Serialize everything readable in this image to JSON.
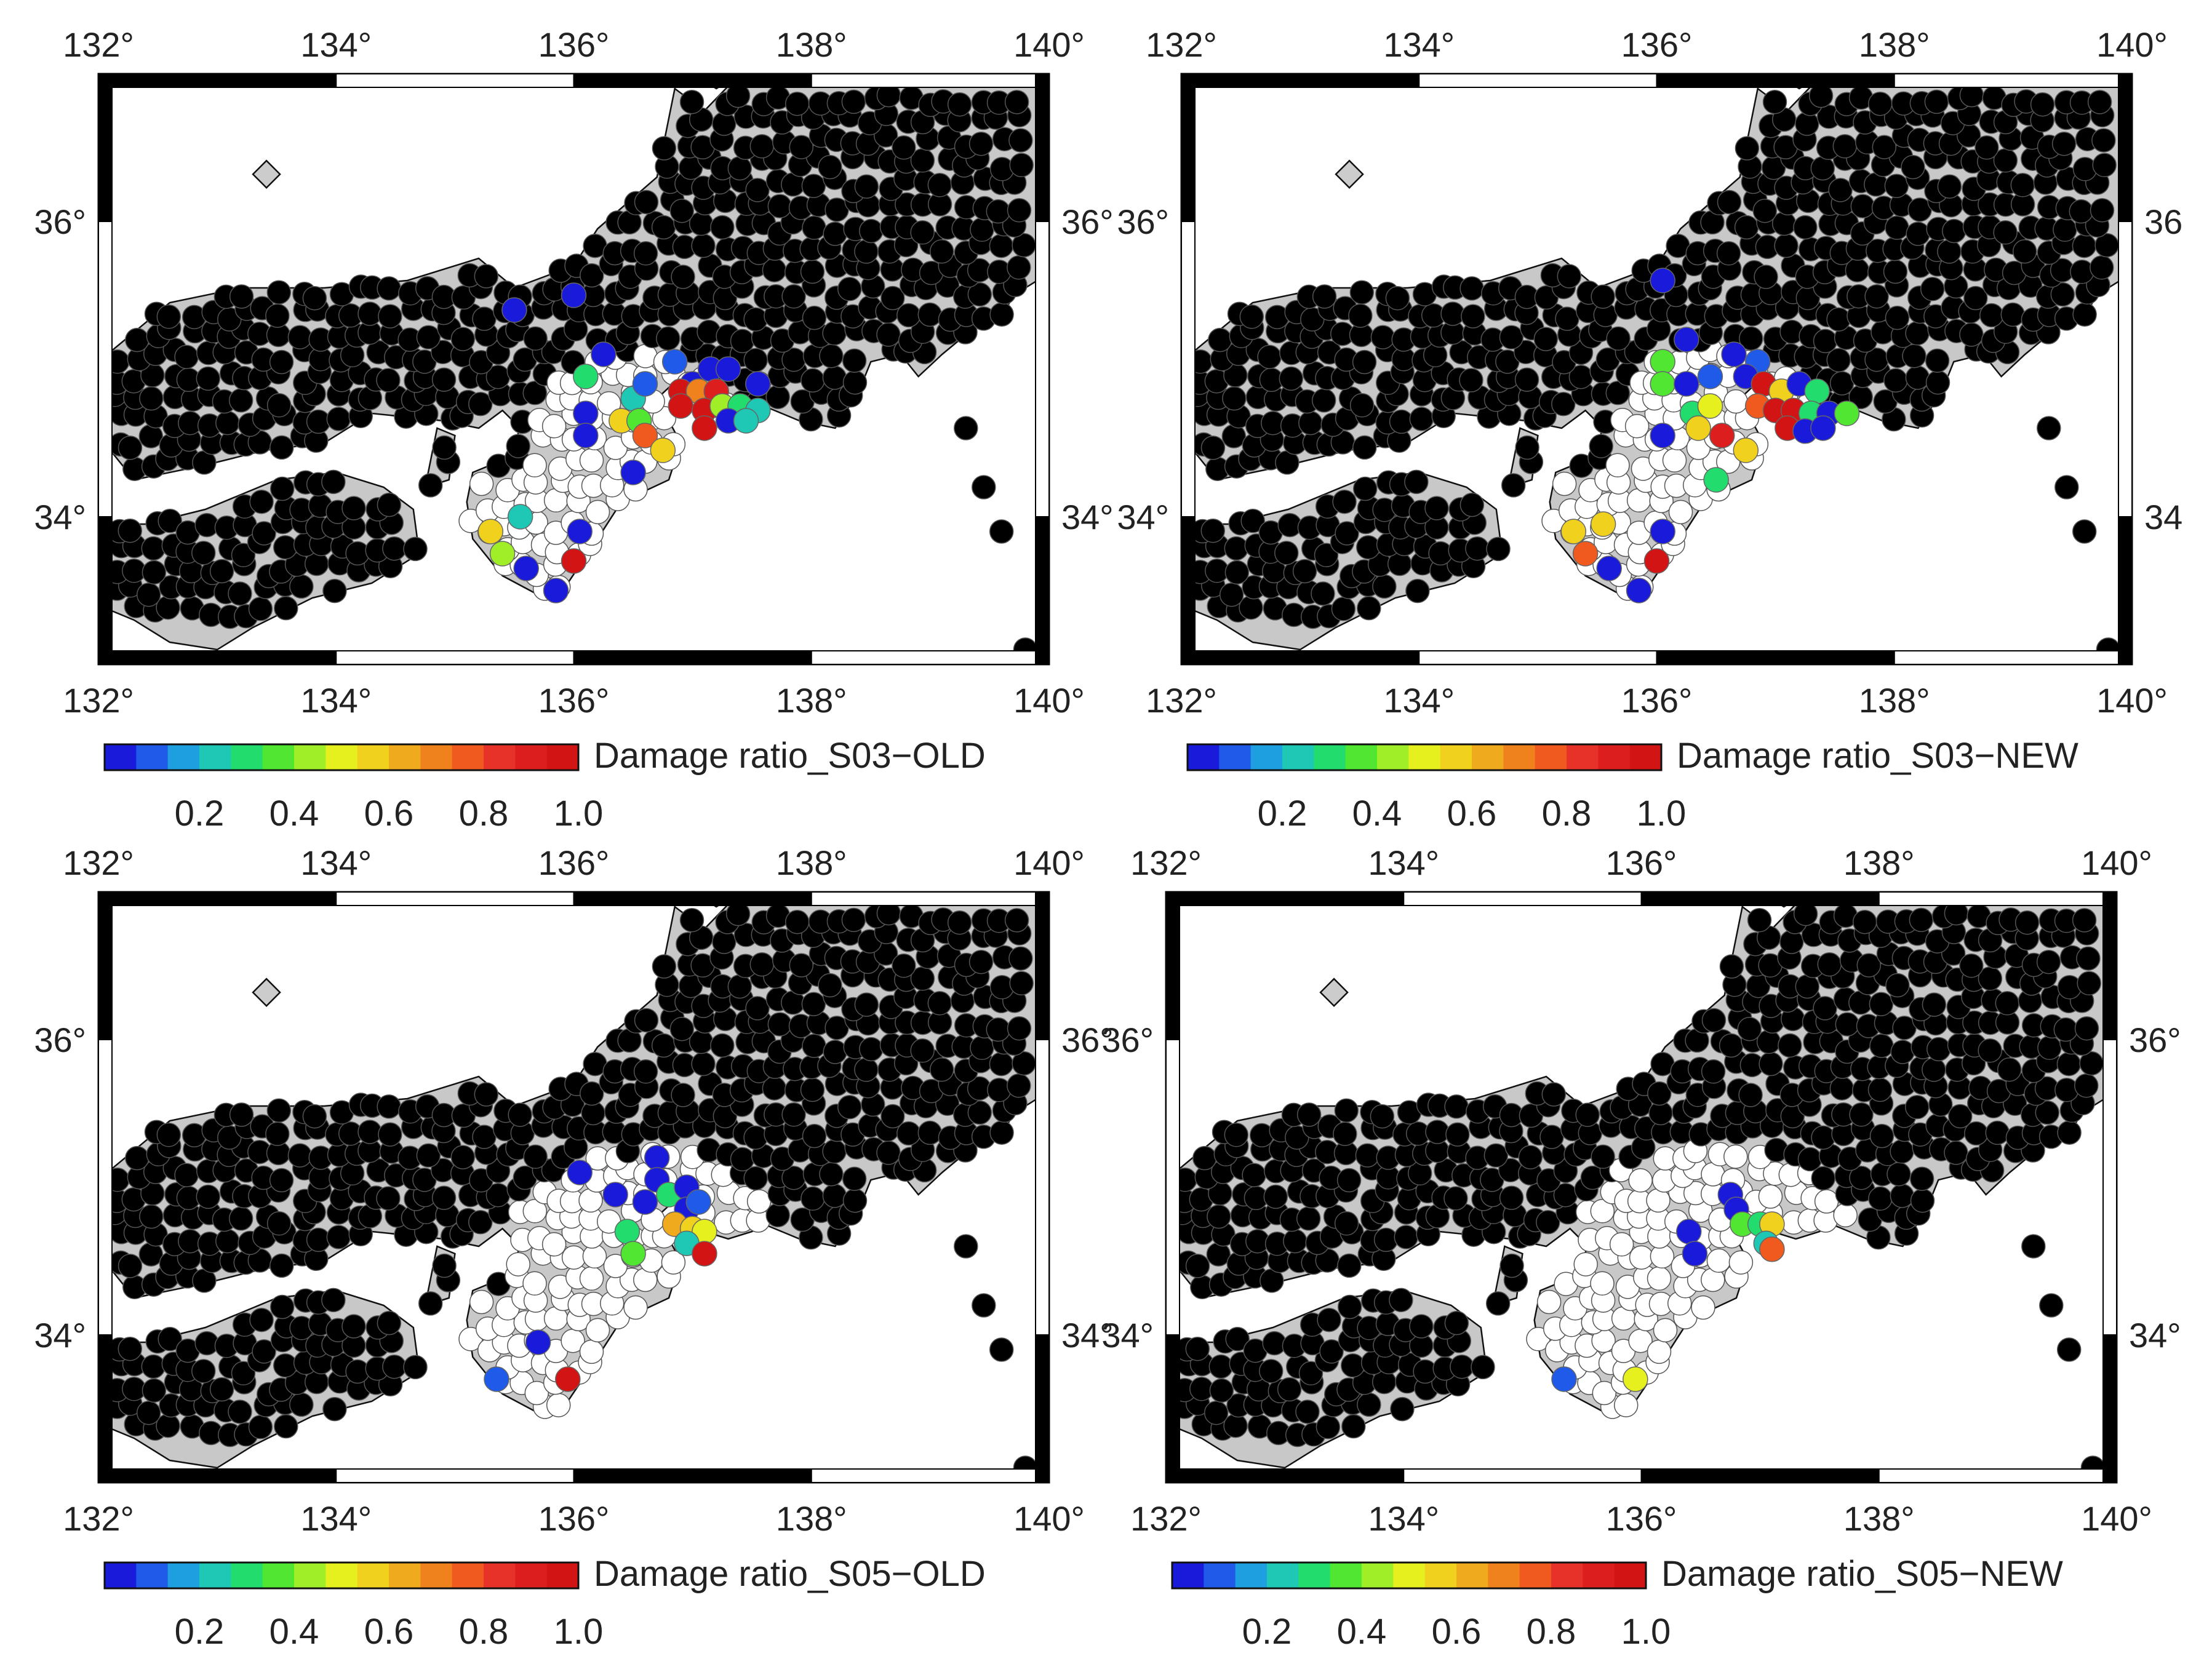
{
  "map": {
    "lon_range": [
      132,
      140
    ],
    "lat_range": [
      33,
      37
    ],
    "lon_ticks": [
      "132°",
      "134°",
      "136°",
      "138°",
      "140°"
    ],
    "lat_ticks": [
      "34°",
      "36°"
    ],
    "lat_ticks_right_alt": [
      "34",
      "36"
    ],
    "land_color": "#c8c8c8",
    "sea_color": "#ffffff",
    "dot_color_unaffected": "#000000",
    "dot_color_zero_damage": "#ffffff"
  },
  "colorbar": {
    "ticks": [
      "0.2",
      "0.4",
      "0.6",
      "0.8",
      "1.0"
    ],
    "colors": [
      "#1a1adb",
      "#1f5ae8",
      "#1ea0e0",
      "#1fc8b4",
      "#22dc6e",
      "#50e632",
      "#a0ee28",
      "#e6f01e",
      "#f0d21e",
      "#f0aa1e",
      "#f0821e",
      "#f05a1e",
      "#e63228",
      "#dc1e1e",
      "#d21414"
    ]
  },
  "panels": [
    {
      "title": "Damage ratio_S03−OLD",
      "right_lat_labels_plain": false,
      "colored_stations": [
        {
          "lon": 135.5,
          "lat": 35.4,
          "ratio": 0.05
        },
        {
          "lon": 136.0,
          "lat": 35.5,
          "ratio": 0.05
        },
        {
          "lon": 136.25,
          "lat": 35.1,
          "ratio": 0.05
        },
        {
          "lon": 136.1,
          "lat": 34.95,
          "ratio": 0.3
        },
        {
          "lon": 136.5,
          "lat": 34.8,
          "ratio": 0.2
        },
        {
          "lon": 136.6,
          "lat": 34.9,
          "ratio": 0.1
        },
        {
          "lon": 136.1,
          "lat": 34.7,
          "ratio": 0.05
        },
        {
          "lon": 136.4,
          "lat": 34.65,
          "ratio": 0.55
        },
        {
          "lon": 136.55,
          "lat": 34.65,
          "ratio": 0.35
        },
        {
          "lon": 136.6,
          "lat": 34.55,
          "ratio": 0.75
        },
        {
          "lon": 136.75,
          "lat": 34.45,
          "ratio": 0.55
        },
        {
          "lon": 136.1,
          "lat": 34.55,
          "ratio": 0.05
        },
        {
          "lon": 136.5,
          "lat": 34.3,
          "ratio": 0.05
        },
        {
          "lon": 136.85,
          "lat": 35.05,
          "ratio": 0.1
        },
        {
          "lon": 137.0,
          "lat": 34.9,
          "ratio": 0.05
        },
        {
          "lon": 137.15,
          "lat": 35.0,
          "ratio": 0.05
        },
        {
          "lon": 137.3,
          "lat": 35.0,
          "ratio": 0.05
        },
        {
          "lon": 136.9,
          "lat": 34.85,
          "ratio": 0.95
        },
        {
          "lon": 137.05,
          "lat": 34.85,
          "ratio": 0.7
        },
        {
          "lon": 137.2,
          "lat": 34.85,
          "ratio": 0.9
        },
        {
          "lon": 136.9,
          "lat": 34.75,
          "ratio": 0.95
        },
        {
          "lon": 137.1,
          "lat": 34.72,
          "ratio": 0.95
        },
        {
          "lon": 137.25,
          "lat": 34.75,
          "ratio": 0.4
        },
        {
          "lon": 137.4,
          "lat": 34.75,
          "ratio": 0.3
        },
        {
          "lon": 137.55,
          "lat": 34.72,
          "ratio": 0.25
        },
        {
          "lon": 137.1,
          "lat": 34.6,
          "ratio": 0.95
        },
        {
          "lon": 137.3,
          "lat": 34.65,
          "ratio": 0.05
        },
        {
          "lon": 137.45,
          "lat": 34.65,
          "ratio": 0.25
        },
        {
          "lon": 137.55,
          "lat": 34.9,
          "ratio": 0.05
        },
        {
          "lon": 135.3,
          "lat": 33.9,
          "ratio": 0.55
        },
        {
          "lon": 135.55,
          "lat": 34.0,
          "ratio": 0.25
        },
        {
          "lon": 135.4,
          "lat": 33.75,
          "ratio": 0.45
        },
        {
          "lon": 135.6,
          "lat": 33.65,
          "ratio": 0.05
        },
        {
          "lon": 135.85,
          "lat": 33.5,
          "ratio": 0.05
        },
        {
          "lon": 136.0,
          "lat": 33.7,
          "ratio": 0.95
        },
        {
          "lon": 136.05,
          "lat": 33.9,
          "ratio": 0.05
        }
      ]
    },
    {
      "title": "Damage ratio_S03−NEW",
      "right_lat_labels_plain": true,
      "colored_stations": [
        {
          "lon": 136.05,
          "lat": 35.6,
          "ratio": 0.05
        },
        {
          "lon": 136.25,
          "lat": 35.2,
          "ratio": 0.05
        },
        {
          "lon": 136.05,
          "lat": 35.05,
          "ratio": 0.35
        },
        {
          "lon": 136.05,
          "lat": 34.9,
          "ratio": 0.35
        },
        {
          "lon": 136.25,
          "lat": 34.9,
          "ratio": 0.05
        },
        {
          "lon": 136.45,
          "lat": 34.95,
          "ratio": 0.1
        },
        {
          "lon": 136.65,
          "lat": 35.1,
          "ratio": 0.05
        },
        {
          "lon": 136.85,
          "lat": 35.05,
          "ratio": 0.1
        },
        {
          "lon": 136.75,
          "lat": 34.95,
          "ratio": 0.05
        },
        {
          "lon": 136.9,
          "lat": 34.9,
          "ratio": 0.95
        },
        {
          "lon": 137.05,
          "lat": 34.85,
          "ratio": 0.55
        },
        {
          "lon": 137.2,
          "lat": 34.9,
          "ratio": 0.05
        },
        {
          "lon": 137.35,
          "lat": 34.85,
          "ratio": 0.3
        },
        {
          "lon": 136.85,
          "lat": 34.75,
          "ratio": 0.75
        },
        {
          "lon": 137.0,
          "lat": 34.72,
          "ratio": 0.95
        },
        {
          "lon": 137.15,
          "lat": 34.72,
          "ratio": 0.95
        },
        {
          "lon": 137.3,
          "lat": 34.7,
          "ratio": 0.3
        },
        {
          "lon": 137.45,
          "lat": 34.7,
          "ratio": 0.05
        },
        {
          "lon": 137.6,
          "lat": 34.7,
          "ratio": 0.35
        },
        {
          "lon": 137.1,
          "lat": 34.6,
          "ratio": 0.95
        },
        {
          "lon": 137.25,
          "lat": 34.58,
          "ratio": 0.05
        },
        {
          "lon": 137.4,
          "lat": 34.6,
          "ratio": 0.05
        },
        {
          "lon": 136.3,
          "lat": 34.7,
          "ratio": 0.3
        },
        {
          "lon": 136.45,
          "lat": 34.75,
          "ratio": 0.5
        },
        {
          "lon": 136.35,
          "lat": 34.6,
          "ratio": 0.55
        },
        {
          "lon": 136.55,
          "lat": 34.55,
          "ratio": 0.9
        },
        {
          "lon": 136.75,
          "lat": 34.45,
          "ratio": 0.55
        },
        {
          "lon": 136.5,
          "lat": 34.25,
          "ratio": 0.3
        },
        {
          "lon": 136.05,
          "lat": 34.55,
          "ratio": 0.05
        },
        {
          "lon": 135.3,
          "lat": 33.9,
          "ratio": 0.55
        },
        {
          "lon": 135.55,
          "lat": 33.95,
          "ratio": 0.55
        },
        {
          "lon": 135.4,
          "lat": 33.75,
          "ratio": 0.75
        },
        {
          "lon": 135.6,
          "lat": 33.65,
          "ratio": 0.05
        },
        {
          "lon": 135.85,
          "lat": 33.5,
          "ratio": 0.05
        },
        {
          "lon": 136.0,
          "lat": 33.7,
          "ratio": 0.95
        },
        {
          "lon": 136.05,
          "lat": 33.9,
          "ratio": 0.05
        }
      ]
    },
    {
      "title": "Damage ratio_S05−OLD",
      "right_lat_labels_plain": false,
      "colored_stations": [
        {
          "lon": 136.05,
          "lat": 35.1,
          "ratio": 0.05
        },
        {
          "lon": 136.35,
          "lat": 34.95,
          "ratio": 0.05
        },
        {
          "lon": 136.7,
          "lat": 35.2,
          "ratio": 0.05
        },
        {
          "lon": 136.7,
          "lat": 35.05,
          "ratio": 0.05
        },
        {
          "lon": 136.6,
          "lat": 34.9,
          "ratio": 0.05
        },
        {
          "lon": 136.8,
          "lat": 34.95,
          "ratio": 0.3
        },
        {
          "lon": 136.95,
          "lat": 35.0,
          "ratio": 0.05
        },
        {
          "lon": 136.95,
          "lat": 34.85,
          "ratio": 0.05
        },
        {
          "lon": 137.05,
          "lat": 34.9,
          "ratio": 0.1
        },
        {
          "lon": 136.85,
          "lat": 34.75,
          "ratio": 0.65
        },
        {
          "lon": 137.0,
          "lat": 34.72,
          "ratio": 0.55
        },
        {
          "lon": 137.1,
          "lat": 34.7,
          "ratio": 0.5
        },
        {
          "lon": 136.95,
          "lat": 34.62,
          "ratio": 0.25
        },
        {
          "lon": 137.1,
          "lat": 34.55,
          "ratio": 0.95
        },
        {
          "lon": 136.45,
          "lat": 34.7,
          "ratio": 0.3
        },
        {
          "lon": 136.5,
          "lat": 34.55,
          "ratio": 0.35
        },
        {
          "lon": 135.7,
          "lat": 33.95,
          "ratio": 0.05
        },
        {
          "lon": 135.35,
          "lat": 33.7,
          "ratio": 0.1
        },
        {
          "lon": 135.95,
          "lat": 33.7,
          "ratio": 0.95
        }
      ]
    },
    {
      "title": "Damage ratio_S05−NEW",
      "right_lat_labels_plain": false,
      "colored_stations": [
        {
          "lon": 136.75,
          "lat": 34.95,
          "ratio": 0.05
        },
        {
          "lon": 136.8,
          "lat": 34.85,
          "ratio": 0.05
        },
        {
          "lon": 136.85,
          "lat": 34.75,
          "ratio": 0.35
        },
        {
          "lon": 137.0,
          "lat": 34.75,
          "ratio": 0.3
        },
        {
          "lon": 137.1,
          "lat": 34.75,
          "ratio": 0.55
        },
        {
          "lon": 137.05,
          "lat": 34.62,
          "ratio": 0.25
        },
        {
          "lon": 137.1,
          "lat": 34.58,
          "ratio": 0.75
        },
        {
          "lon": 136.4,
          "lat": 34.7,
          "ratio": 0.05
        },
        {
          "lon": 136.45,
          "lat": 34.55,
          "ratio": 0.05
        },
        {
          "lon": 135.35,
          "lat": 33.7,
          "ratio": 0.1
        },
        {
          "lon": 135.95,
          "lat": 33.7,
          "ratio": 0.5
        }
      ]
    }
  ]
}
